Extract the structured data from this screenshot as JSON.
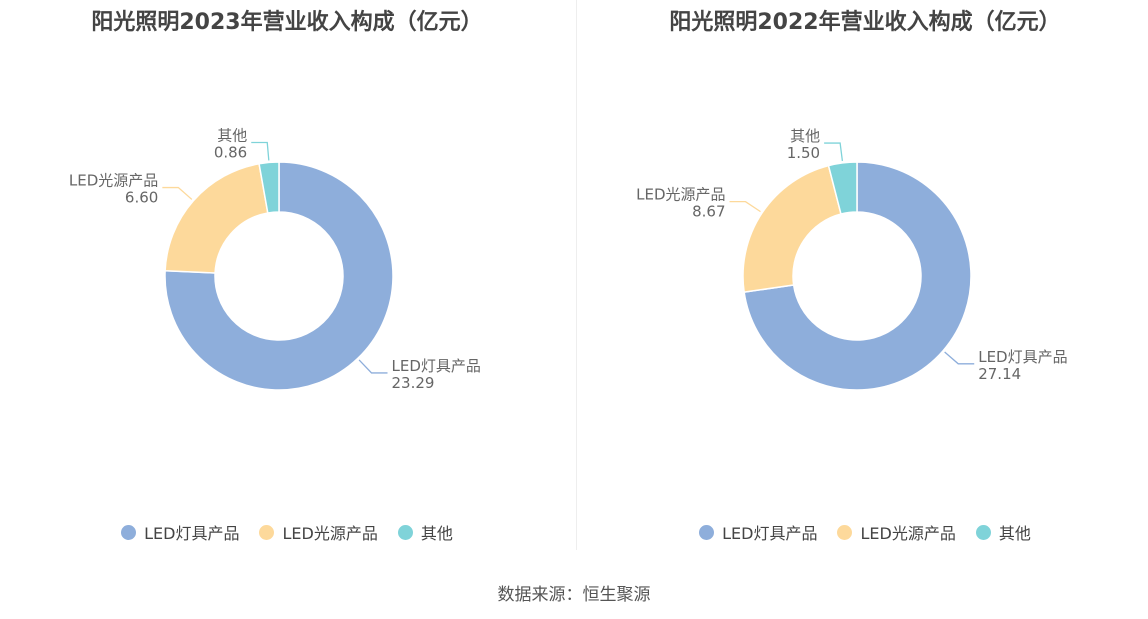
{
  "chart_data": [
    {
      "type": "pie",
      "variant": "donut",
      "title": "阳光照明2023年营业收入构成（亿元）",
      "categories": [
        "LED灯具产品",
        "LED光源产品",
        "其他"
      ],
      "values": [
        23.29,
        6.6,
        0.86
      ],
      "value_labels": [
        "23.29",
        "6.60",
        "0.86"
      ],
      "colors": [
        "#8eaedb",
        "#fdd99b",
        "#7fd3d9"
      ],
      "legend": "bottom"
    },
    {
      "type": "pie",
      "variant": "donut",
      "title": "阳光照明2022年营业收入构成（亿元）",
      "categories": [
        "LED灯具产品",
        "LED光源产品",
        "其他"
      ],
      "values": [
        27.14,
        8.67,
        1.5
      ],
      "value_labels": [
        "27.14",
        "8.67",
        "1.50"
      ],
      "colors": [
        "#8eaedb",
        "#fdd99b",
        "#7fd3d9"
      ],
      "legend": "bottom"
    }
  ],
  "source": "数据来源：恒生聚源"
}
